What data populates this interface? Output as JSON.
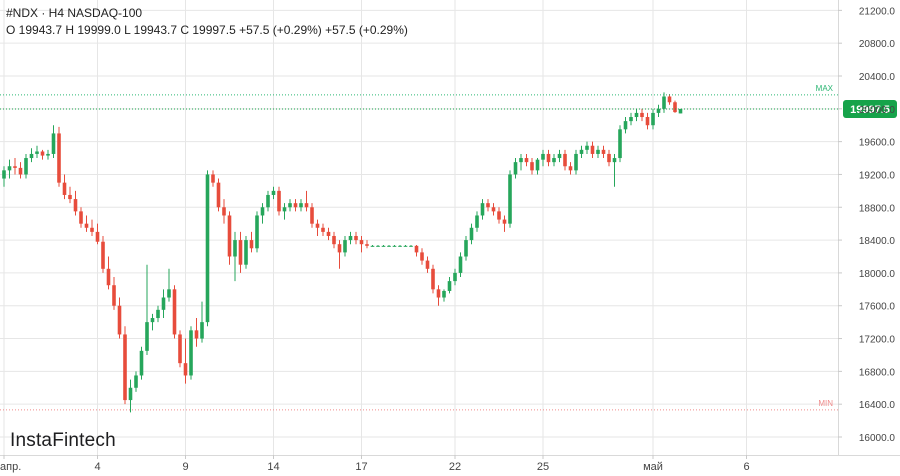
{
  "header": {
    "title": "#NDX · H4 NASDAQ-100",
    "ohlc": "O 19943.7 H 19999.0 L 19943.7 C 19997.5 +57.5 (+0.29%) +57.5 (+0.29%)"
  },
  "logo": {
    "text": "InstaFintech"
  },
  "colors": {
    "up": "#26a65b",
    "down": "#e74c3c",
    "max": "#2bb673",
    "min": "#f08a8a",
    "grid": "#e6e6e6",
    "last": "#16a34a"
  },
  "chart_data": {
    "type": "candlestick",
    "symbol": "#NDX",
    "timeframe": "H4",
    "ylim": [
      15900,
      21250
    ],
    "y_ticks": [
      "16000.0",
      "16400.0",
      "16800.0",
      "17200.0",
      "17600.0",
      "18000.0",
      "18400.0",
      "18800.0",
      "19200.0",
      "19600.0",
      "20000.0",
      "20400.0",
      "20800.0",
      "21200.0"
    ],
    "x_ticks": [
      {
        "label": "апр.",
        "index": 0
      },
      {
        "label": "4",
        "index": 17
      },
      {
        "label": "9",
        "index": 33
      },
      {
        "label": "14",
        "index": 49
      },
      {
        "label": "17",
        "index": 65
      },
      {
        "label": "22",
        "index": 82
      },
      {
        "label": "25",
        "index": 98
      },
      {
        "label": "май",
        "index": 118
      },
      {
        "label": "6",
        "index": 135
      }
    ],
    "max_line": {
      "label": "MAX",
      "value": 20170
    },
    "min_line": {
      "label": "MIN",
      "value": 16330
    },
    "last_price": {
      "label": "19997.5",
      "value": 19997.5
    },
    "candles": [
      [
        19150,
        19300,
        19050,
        19250
      ],
      [
        19250,
        19380,
        19150,
        19300
      ],
      [
        19300,
        19400,
        19200,
        19280
      ],
      [
        19280,
        19350,
        19150,
        19200
      ],
      [
        19200,
        19450,
        19150,
        19400
      ],
      [
        19400,
        19520,
        19350,
        19450
      ],
      [
        19450,
        19550,
        19400,
        19480
      ],
      [
        19480,
        19500,
        19380,
        19430
      ],
      [
        19430,
        19500,
        19380,
        19450
      ],
      [
        19450,
        19800,
        19400,
        19700
      ],
      [
        19700,
        19780,
        19050,
        19100
      ],
      [
        19100,
        19200,
        18900,
        18950
      ],
      [
        18950,
        19050,
        18850,
        18900
      ],
      [
        18900,
        19000,
        18700,
        18750
      ],
      [
        18750,
        18800,
        18550,
        18600
      ],
      [
        18600,
        18700,
        18500,
        18550
      ],
      [
        18550,
        18650,
        18450,
        18500
      ],
      [
        18500,
        18600,
        18350,
        18380
      ],
      [
        18380,
        18450,
        18000,
        18050
      ],
      [
        18050,
        18200,
        17800,
        17850
      ],
      [
        17850,
        17950,
        17550,
        17600
      ],
      [
        17600,
        17700,
        17200,
        17250
      ],
      [
        17250,
        17350,
        16400,
        16450
      ],
      [
        16450,
        16700,
        16300,
        16600
      ],
      [
        16600,
        16800,
        16550,
        16750
      ],
      [
        16750,
        17100,
        16700,
        17050
      ],
      [
        17050,
        18100,
        17000,
        17400
      ],
      [
        17400,
        17500,
        17300,
        17450
      ],
      [
        17450,
        17600,
        17400,
        17550
      ],
      [
        17550,
        17800,
        17450,
        17700
      ],
      [
        17700,
        18050,
        17650,
        17800
      ],
      [
        17800,
        17850,
        17200,
        17250
      ],
      [
        17250,
        17300,
        16850,
        16900
      ],
      [
        16900,
        17200,
        16650,
        16750
      ],
      [
        16750,
        17350,
        16700,
        17300
      ],
      [
        17300,
        17450,
        17100,
        17200
      ],
      [
        17200,
        17650,
        17150,
        17400
      ],
      [
        17400,
        19250,
        17350,
        19200
      ],
      [
        19200,
        19250,
        19050,
        19100
      ],
      [
        19100,
        19150,
        18750,
        18800
      ],
      [
        18800,
        18900,
        18600,
        18700
      ],
      [
        18700,
        18750,
        18100,
        18200
      ],
      [
        18200,
        18500,
        17900,
        18400
      ],
      [
        18400,
        18500,
        18000,
        18100
      ],
      [
        18100,
        18450,
        18050,
        18400
      ],
      [
        18400,
        18500,
        18250,
        18300
      ],
      [
        18300,
        18750,
        18250,
        18700
      ],
      [
        18700,
        18850,
        18600,
        18800
      ],
      [
        18800,
        19000,
        18750,
        18950
      ],
      [
        18950,
        19050,
        18900,
        19000
      ],
      [
        19000,
        19050,
        18700,
        18750
      ],
      [
        18750,
        18850,
        18650,
        18800
      ],
      [
        18800,
        18900,
        18750,
        18850
      ],
      [
        18850,
        18900,
        18750,
        18800
      ],
      [
        18800,
        18900,
        18750,
        18850
      ],
      [
        18850,
        19000,
        18750,
        18800
      ],
      [
        18800,
        18850,
        18550,
        18600
      ],
      [
        18600,
        18650,
        18450,
        18550
      ],
      [
        18550,
        18600,
        18450,
        18500
      ],
      [
        18500,
        18550,
        18400,
        18450
      ],
      [
        18450,
        18500,
        18300,
        18350
      ],
      [
        18350,
        18400,
        18050,
        18250
      ],
      [
        18250,
        18450,
        18200,
        18400
      ],
      [
        18400,
        18500,
        18350,
        18450
      ],
      [
        18450,
        18500,
        18350,
        18400
      ],
      [
        18400,
        18450,
        18250,
        18350
      ],
      [
        18350,
        18400,
        18300,
        18330
      ],
      [
        18330,
        18340,
        18320,
        18330
      ],
      [
        18330,
        18340,
        18320,
        18330
      ],
      [
        18330,
        18340,
        18320,
        18330
      ],
      [
        18330,
        18340,
        18320,
        18330
      ],
      [
        18330,
        18340,
        18320,
        18330
      ],
      [
        18330,
        18340,
        18320,
        18330
      ],
      [
        18330,
        18340,
        18320,
        18330
      ],
      [
        18330,
        18340,
        18320,
        18330
      ],
      [
        18330,
        18340,
        18200,
        18250
      ],
      [
        18250,
        18300,
        18100,
        18150
      ],
      [
        18150,
        18200,
        18000,
        18050
      ],
      [
        18050,
        18100,
        17750,
        17800
      ],
      [
        17800,
        17850,
        17600,
        17700
      ],
      [
        17700,
        17800,
        17650,
        17780
      ],
      [
        17780,
        17950,
        17750,
        17900
      ],
      [
        17900,
        18050,
        17850,
        18000
      ],
      [
        18000,
        18250,
        17950,
        18200
      ],
      [
        18200,
        18450,
        18150,
        18400
      ],
      [
        18400,
        18600,
        18350,
        18550
      ],
      [
        18550,
        18750,
        18500,
        18700
      ],
      [
        18700,
        18900,
        18650,
        18850
      ],
      [
        18850,
        18900,
        18750,
        18800
      ],
      [
        18800,
        18850,
        18700,
        18750
      ],
      [
        18750,
        18800,
        18600,
        18650
      ],
      [
        18650,
        18700,
        18500,
        18600
      ],
      [
        18600,
        19250,
        18550,
        19200
      ],
      [
        19200,
        19400,
        19150,
        19350
      ],
      [
        19350,
        19450,
        19250,
        19400
      ],
      [
        19400,
        19450,
        19300,
        19350
      ],
      [
        19350,
        19400,
        19200,
        19250
      ],
      [
        19250,
        19400,
        19200,
        19380
      ],
      [
        19380,
        19500,
        19300,
        19450
      ],
      [
        19450,
        19500,
        19300,
        19350
      ],
      [
        19350,
        19450,
        19300,
        19400
      ],
      [
        19400,
        19500,
        19350,
        19450
      ],
      [
        19450,
        19500,
        19250,
        19300
      ],
      [
        19300,
        19350,
        19200,
        19250
      ],
      [
        19250,
        19500,
        19200,
        19450
      ],
      [
        19450,
        19550,
        19400,
        19500
      ],
      [
        19500,
        19600,
        19450,
        19550
      ],
      [
        19550,
        19600,
        19400,
        19450
      ],
      [
        19450,
        19550,
        19400,
        19500
      ],
      [
        19500,
        19550,
        19400,
        19450
      ],
      [
        19450,
        19500,
        19300,
        19350
      ],
      [
        19350,
        19450,
        19050,
        19400
      ],
      [
        19400,
        19800,
        19350,
        19750
      ],
      [
        19750,
        19900,
        19700,
        19850
      ],
      [
        19850,
        19950,
        19800,
        19900
      ],
      [
        19900,
        20000,
        19850,
        19950
      ],
      [
        19950,
        20000,
        19850,
        19900
      ],
      [
        19900,
        19950,
        19750,
        19800
      ],
      [
        19800,
        20000,
        19750,
        19950
      ],
      [
        19950,
        20050,
        19900,
        20000
      ],
      [
        20000,
        20200,
        19950,
        20150
      ],
      [
        20150,
        20180,
        20050,
        20080
      ],
      [
        20080,
        20100,
        19950,
        19960
      ],
      [
        19943.7,
        19999.0,
        19943.7,
        19997.5
      ]
    ]
  }
}
